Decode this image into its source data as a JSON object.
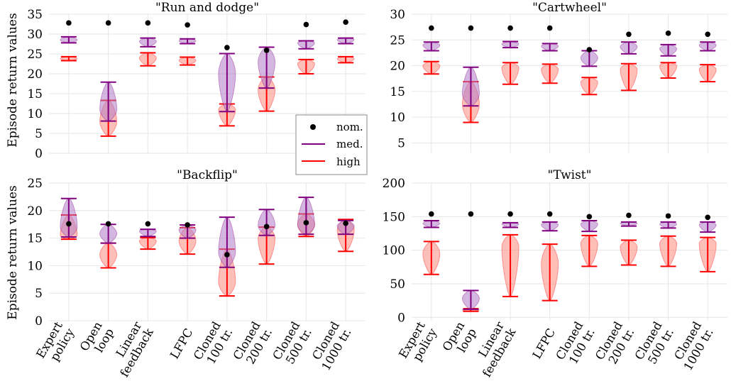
{
  "figure": {
    "ylabel": "Episode return values",
    "categories": [
      [
        "Expert",
        "policy"
      ],
      [
        "Open",
        "loop"
      ],
      [
        "Linear",
        "feedback"
      ],
      [
        "LFPC"
      ],
      [
        "Cloned",
        "100 tr."
      ],
      [
        "Cloned",
        "200 tr."
      ],
      [
        "Cloned",
        "500 tr."
      ],
      [
        "Cloned",
        "1000 tr."
      ]
    ],
    "legend": [
      {
        "key": "nom",
        "label": "nom."
      },
      {
        "key": "med",
        "label": "med."
      },
      {
        "key": "high",
        "label": "high"
      }
    ],
    "colors": {
      "nom": "#000000",
      "med": "#800080",
      "med_fill": "#b07cc6",
      "high": "#ff0000",
      "high_fill": "#ff8a80",
      "grid": "#e6e6e6"
    }
  },
  "chart_data": [
    {
      "type": "violin",
      "title": "\"Run and dodge\"",
      "ylim": [
        0,
        35
      ],
      "yticks": [
        0,
        5,
        10,
        15,
        20,
        25,
        30,
        35
      ],
      "ylabel": "Episode return values",
      "nom": [
        32.8,
        32.8,
        32.8,
        32.3,
        26.6,
        25.9,
        32.4,
        33.0
      ],
      "med": [
        [
          27.8,
          29.3,
          28.5
        ],
        [
          8.1,
          17.9,
          11.0
        ],
        [
          26.8,
          29.0,
          28.2
        ],
        [
          27.6,
          28.8,
          28.3
        ],
        [
          10.5,
          25.1,
          20.0
        ],
        [
          16.4,
          26.7,
          23.0
        ],
        [
          26.3,
          28.3,
          27.8
        ],
        [
          27.6,
          29.0,
          28.6
        ]
      ],
      "high": [
        [
          23.3,
          24.3,
          23.8
        ],
        [
          4.3,
          13.3,
          8.0
        ],
        [
          22.0,
          25.3,
          24.0
        ],
        [
          22.2,
          24.2,
          23.4
        ],
        [
          6.9,
          12.4,
          11.0
        ],
        [
          10.6,
          19.2,
          16.0
        ],
        [
          20.0,
          23.6,
          22.5
        ],
        [
          22.8,
          24.3,
          23.8
        ]
      ]
    },
    {
      "type": "violin",
      "title": "\"Cartwheel\"",
      "ylim": [
        3,
        30
      ],
      "yticks": [
        5,
        10,
        15,
        20,
        25,
        30
      ],
      "nom": [
        27.3,
        27.3,
        27.3,
        27.3,
        23.1,
        26.1,
        26.3,
        26.1
      ],
      "med": [
        [
          22.9,
          24.6,
          24.0
        ],
        [
          12.2,
          19.7,
          14.5
        ],
        [
          23.5,
          24.7,
          24.2
        ],
        [
          22.9,
          24.3,
          23.8
        ],
        [
          19.9,
          22.9,
          21.5
        ],
        [
          22.3,
          24.6,
          23.7
        ],
        [
          21.9,
          24.1,
          23.3
        ],
        [
          22.9,
          24.6,
          24.0
        ]
      ],
      "high": [
        [
          18.4,
          20.8,
          20.0
        ],
        [
          9.0,
          16.9,
          12.5
        ],
        [
          16.4,
          20.6,
          19.6
        ],
        [
          16.6,
          20.3,
          19.3
        ],
        [
          14.4,
          17.7,
          16.8
        ],
        [
          15.2,
          20.4,
          19.3
        ],
        [
          17.6,
          20.6,
          20.0
        ],
        [
          16.9,
          20.2,
          19.3
        ]
      ]
    },
    {
      "type": "violin",
      "title": "\"Backflip\"",
      "ylim": [
        0,
        25
      ],
      "yticks": [
        0,
        5,
        10,
        15,
        20,
        25
      ],
      "ylabel": "Episode return values",
      "nom": [
        17.6,
        17.6,
        17.6,
        17.4,
        12.0,
        17.1,
        17.8,
        17.7
      ],
      "med": [
        [
          15.2,
          22.2,
          17.0
        ],
        [
          14.1,
          17.5,
          15.8
        ],
        [
          15.3,
          16.6,
          16.3
        ],
        [
          15.0,
          17.4,
          16.5
        ],
        [
          9.7,
          18.8,
          12.5
        ],
        [
          15.5,
          20.2,
          17.3
        ],
        [
          15.7,
          22.4,
          17.3
        ],
        [
          15.7,
          18.2,
          17.2
        ]
      ],
      "high": [
        [
          14.8,
          19.2,
          15.5
        ],
        [
          9.6,
          14.1,
          12.0
        ],
        [
          13.0,
          15.1,
          14.5
        ],
        [
          12.1,
          16.9,
          14.5
        ],
        [
          4.5,
          13.0,
          7.0
        ],
        [
          10.3,
          17.0,
          15.0
        ],
        [
          15.3,
          19.4,
          17.5
        ],
        [
          12.6,
          18.4,
          16.5
        ]
      ]
    },
    {
      "type": "violin",
      "title": "\"Twist\"",
      "ylim": [
        -5,
        200
      ],
      "yticks": [
        0,
        50,
        100,
        150,
        200
      ],
      "nom": [
        154,
        154,
        154,
        154,
        150,
        152,
        151,
        149
      ],
      "med": [
        [
          134,
          144,
          140
        ],
        [
          12,
          40,
          28
        ],
        [
          134,
          141,
          139
        ],
        [
          129,
          142,
          138
        ],
        [
          128,
          144,
          139
        ],
        [
          136,
          142,
          140
        ],
        [
          133,
          142,
          139
        ],
        [
          127,
          142,
          138
        ]
      ],
      "high": [
        [
          64,
          113,
          95
        ],
        [
          9,
          13,
          11
        ],
        [
          31,
          123,
          105
        ],
        [
          25,
          109,
          80
        ],
        [
          76,
          122,
          110
        ],
        [
          78,
          115,
          105
        ],
        [
          76,
          121,
          110
        ],
        [
          68,
          119,
          110
        ]
      ]
    }
  ]
}
